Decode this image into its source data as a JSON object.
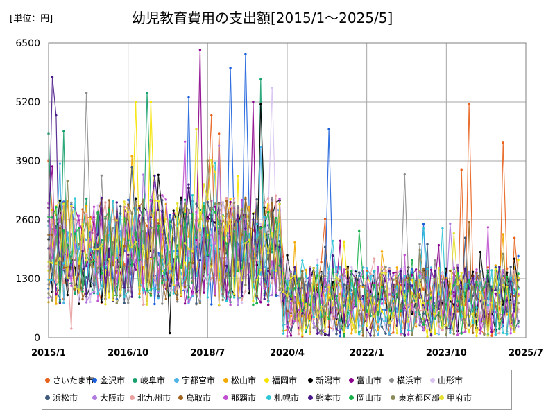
{
  "header": {
    "unit": "[単位：円]",
    "title": "幼児教育費用の支出額[2015/1～2025/5]"
  },
  "chart_data": {
    "type": "line",
    "title": "幼児教育費用の支出額[2015/1～2025/5]",
    "unit": "[単位：円]",
    "y_ticks": [
      "0",
      "1300",
      "2600",
      "3900",
      "5200",
      "6500"
    ],
    "x_ticks": [
      "2015/1",
      "2016/10",
      "2018/7",
      "2020/4",
      "2022/1",
      "2023/10",
      "2025/7"
    ],
    "ylim": [
      0,
      6500
    ],
    "grid": true,
    "legend_position": "bottom",
    "series": [
      {
        "name": "さいたま市",
        "color": "#e8601c",
        "highlights": [
          [
            "2015/1",
            3900
          ],
          [
            "2018/8",
            4900
          ],
          [
            "2018/10",
            4500
          ],
          [
            "2024/2",
            3700
          ],
          [
            "2024/4",
            5150
          ],
          [
            "2025/1",
            4300
          ],
          [
            "2025/4",
            2200
          ]
        ]
      },
      {
        "name": "金沢市",
        "color": "#1a5fdb",
        "highlights": [
          [
            "2018/2",
            5300
          ],
          [
            "2019/1",
            5950
          ],
          [
            "2019/5",
            6250
          ],
          [
            "2021/3",
            4600
          ],
          [
            "2025/5",
            1800
          ]
        ]
      },
      {
        "name": "岐阜市",
        "color": "#16a06b",
        "highlights": [
          [
            "2015/1",
            4500
          ],
          [
            "2015/5",
            4550
          ],
          [
            "2017/3",
            5400
          ],
          [
            "2019/9",
            5700
          ]
        ]
      },
      {
        "name": "宇都宮市",
        "color": "#4db3e6",
        "highlights": [
          [
            "2019/9",
            4200
          ]
        ]
      },
      {
        "name": "松山市",
        "color": "#f2a900",
        "highlights": [
          [
            "2016/11",
            4000
          ],
          [
            "2020/6",
            2100
          ]
        ]
      },
      {
        "name": "福岡市",
        "color": "#f5e300",
        "highlights": [
          [
            "2016/12",
            5200
          ],
          [
            "2017/4",
            5200
          ]
        ]
      },
      {
        "name": "新潟市",
        "color": "#000000",
        "highlights": [
          [
            "2017/9",
            100
          ],
          [
            "2019/9",
            5150
          ],
          [
            "2025/5",
            1100
          ]
        ]
      },
      {
        "name": "富山市",
        "color": "#8b008b",
        "highlights": [
          [
            "2018/5",
            6350
          ],
          [
            "2019/7",
            5200
          ]
        ]
      },
      {
        "name": "横浜市",
        "color": "#8c8c8c",
        "highlights": [
          [
            "2015/11",
            5400
          ],
          [
            "2022/11",
            3600
          ]
        ]
      },
      {
        "name": "山形市",
        "color": "#d9c2f0",
        "highlights": [
          [
            "2019/12",
            5500
          ]
        ]
      },
      {
        "name": "浜松市",
        "color": "#3f5a7a",
        "highlights": [
          [
            "2021/2",
            2000
          ]
        ]
      },
      {
        "name": "大阪市",
        "color": "#b07ae0",
        "highlights": [
          [
            "2017/7",
            2500
          ]
        ]
      },
      {
        "name": "北九州市",
        "color": "#e8a0a0",
        "highlights": [
          [
            "2015/7",
            200
          ]
        ]
      },
      {
        "name": "鳥取市",
        "color": "#a0651e",
        "highlights": [
          [
            "2017/5",
            2600
          ]
        ]
      },
      {
        "name": "那覇市",
        "color": "#c050d0",
        "highlights": [
          [
            "2016/3",
            2600
          ]
        ]
      },
      {
        "name": "札幌市",
        "color": "#30c5d5",
        "highlights": [
          [
            "2021/2",
            700
          ]
        ]
      },
      {
        "name": "熊本市",
        "color": "#4a1a8a",
        "highlights": [
          [
            "2015/2",
            5750
          ],
          [
            "2015/3",
            4900
          ]
        ]
      },
      {
        "name": "岡山市",
        "color": "#18b04a",
        "highlights": [
          [
            "2021/11",
            2350
          ]
        ]
      },
      {
        "name": "東京都区部",
        "color": "#8a8a5a",
        "highlights": [
          [
            "2016/6",
            2100
          ]
        ]
      },
      {
        "name": "甲府市",
        "color": "#e6e030",
        "highlights": [
          [
            "2018/4",
            4600
          ],
          [
            "2023/12",
            2300
          ]
        ]
      }
    ]
  }
}
